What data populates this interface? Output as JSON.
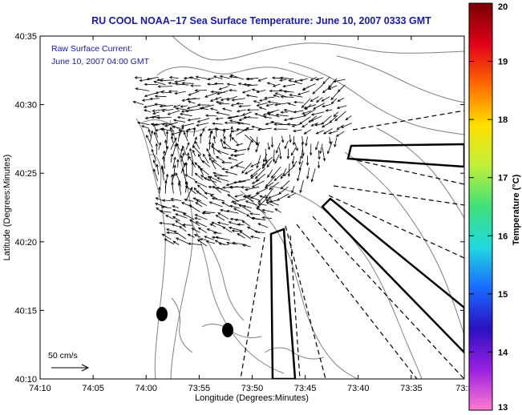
{
  "title": "RU COOL  NOAA−17  Sea Surface Temperature:  June 10, 2007 0333 GMT",
  "annotation": {
    "line1": "Raw Surface Current:",
    "line2": "June 10, 2007 04:00 GMT"
  },
  "scale_label": "50 cm/s",
  "xlabel": "Longitude (Degrees:Minutes)",
  "ylabel": "Latitude (Degrees:Minutes)",
  "x_ticks": [
    "74:10",
    "74:05",
    "74:00",
    "73:55",
    "73:50",
    "73:45",
    "73:40",
    "73:35",
    "73:3"
  ],
  "y_ticks": [
    "40:35",
    "40:30",
    "40:25",
    "40:20",
    "40:15",
    "40:10"
  ],
  "colorbar": {
    "label": "Temperature (°C)",
    "ticks": [
      "20",
      "19",
      "18",
      "17",
      "16",
      "15",
      "14",
      "13"
    ],
    "range": [
      13,
      20
    ],
    "colors": [
      "#7a0000",
      "#e0001a",
      "#ff6a00",
      "#ffe000",
      "#bff03a",
      "#3fe07a",
      "#20d8e0",
      "#1a6aff",
      "#2a10c0",
      "#9a20e0",
      "#ff7ad0"
    ]
  },
  "colors": {
    "title": "#1a1aa0",
    "note": "#1a1aa0",
    "contour": "#808080",
    "arrows": "#000000",
    "overlay": "#000000"
  }
}
